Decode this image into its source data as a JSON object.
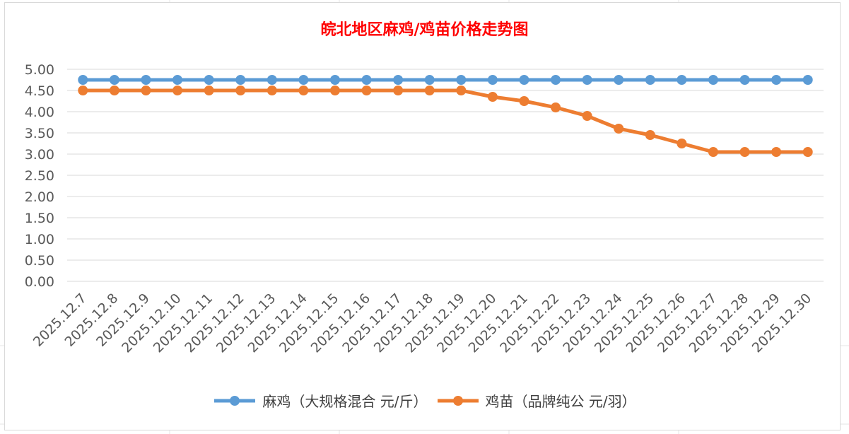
{
  "chart_data": {
    "type": "line",
    "title": "皖北地区麻鸡/鸡苗价格走势图",
    "xlabel": "",
    "ylabel": "",
    "ylim": [
      0,
      5
    ],
    "ytick_step": 0.5,
    "ytick_labels": [
      "0.00",
      "0.50",
      "1.00",
      "1.50",
      "2.00",
      "2.50",
      "3.00",
      "3.50",
      "4.00",
      "4.50",
      "5.00"
    ],
    "categories": [
      "2025.12.7",
      "2025.12.8",
      "2025.12.9",
      "2025.12.10",
      "2025.12.11",
      "2025.12.12",
      "2025.12.13",
      "2025.12.14",
      "2025.12.15",
      "2025.12.16",
      "2025.12.17",
      "2025.12.18",
      "2025.12.19",
      "2025.12.20",
      "2025.12.21",
      "2025.12.22",
      "2025.12.23",
      "2025.12.24",
      "2025.12.25",
      "2025.12.26",
      "2025.12.27",
      "2025.12.28",
      "2025.12.29",
      "2025.12.30"
    ],
    "series": [
      {
        "name": "麻鸡（大规格混合 元/斤）",
        "color": "#5b9bd5",
        "values": [
          4.75,
          4.75,
          4.75,
          4.75,
          4.75,
          4.75,
          4.75,
          4.75,
          4.75,
          4.75,
          4.75,
          4.75,
          4.75,
          4.75,
          4.75,
          4.75,
          4.75,
          4.75,
          4.75,
          4.75,
          4.75,
          4.75,
          4.75,
          4.75
        ]
      },
      {
        "name": "鸡苗（品牌纯公 元/羽）",
        "color": "#ed7d31",
        "values": [
          4.5,
          4.5,
          4.5,
          4.5,
          4.5,
          4.5,
          4.5,
          4.5,
          4.5,
          4.5,
          4.5,
          4.5,
          4.5,
          4.35,
          4.25,
          4.1,
          3.9,
          3.6,
          3.45,
          3.25,
          3.05,
          3.05,
          3.05,
          3.05
        ]
      }
    ],
    "grid": true,
    "legend_position": "bottom"
  }
}
